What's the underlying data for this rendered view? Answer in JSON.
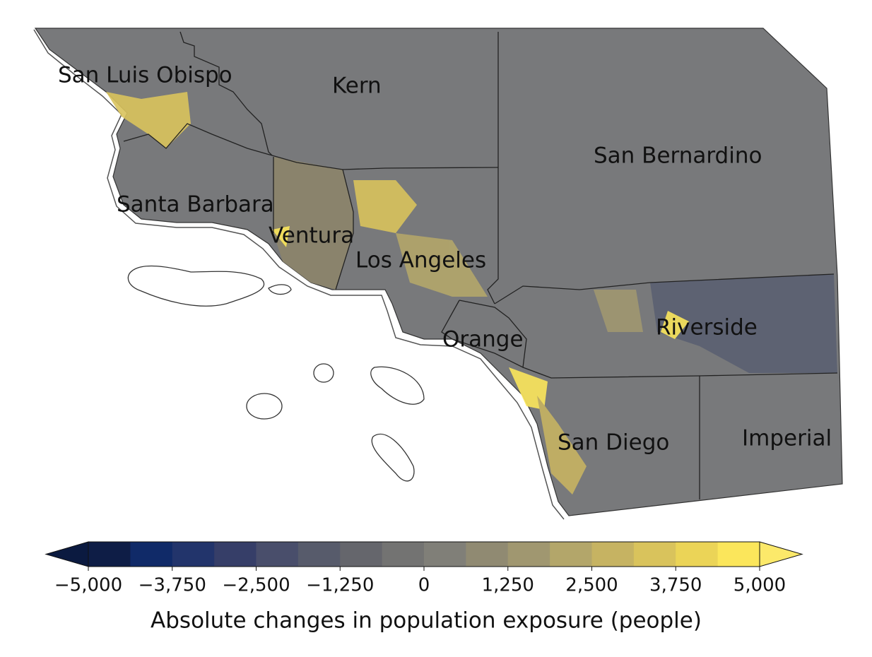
{
  "counties": [
    "San Luis Obispo",
    "Kern",
    "San Bernardino",
    "Santa Barbara",
    "Ventura",
    "Los Angeles",
    "Orange",
    "Riverside",
    "San Diego",
    "Imperial"
  ],
  "colorbar": {
    "label": "Absolute changes in population exposure (people)",
    "lim": [
      -5000,
      5000
    ],
    "ticks": [
      {
        "value": -5000,
        "label": "−5,000"
      },
      {
        "value": -3750,
        "label": "−3,750"
      },
      {
        "value": -2500,
        "label": "−2,500"
      },
      {
        "value": -1250,
        "label": "−1,250"
      },
      0,
      {
        "value": 1250,
        "label": "1,250"
      },
      {
        "value": 2500,
        "label": "2,500"
      },
      {
        "value": 3750,
        "label": "3,750"
      },
      {
        "value": 5000,
        "label": "5,000"
      }
    ],
    "colors": [
      "#0e1d46",
      "#102a68",
      "#22346b",
      "#363e68",
      "#494e6b",
      "#575b6b",
      "#65666c",
      "#737372",
      "#807f78",
      "#908a72",
      "#a09770",
      "#b3a66a",
      "#c6b362",
      "#d9c35c",
      "#ebd457",
      "#fbe65b"
    ],
    "extend_colors": [
      "#0b1a40",
      "#fce96a"
    ]
  }
}
